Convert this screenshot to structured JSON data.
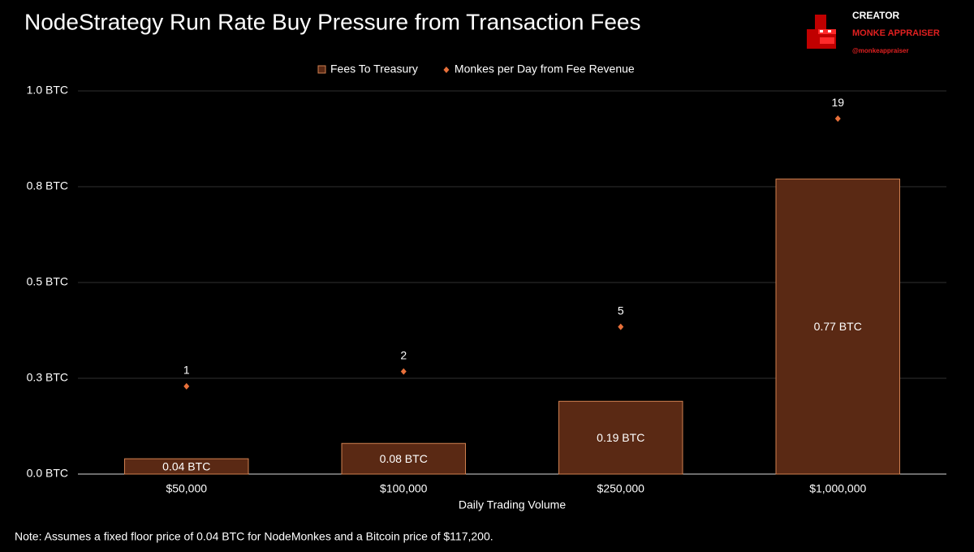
{
  "chart_data": {
    "type": "bar",
    "title": "NodeStrategy Run Rate Buy Pressure from Transaction Fees",
    "xlabel": "Daily Trading Volume",
    "note": "Note: Assumes a fixed floor price of 0.04 BTC for NodeMonkes and a Bitcoin price of $117,200.",
    "categories": [
      "$50,000",
      "$100,000",
      "$250,000",
      "$1,000,000"
    ],
    "series": [
      {
        "name": "Fees To Treasury",
        "type": "bar",
        "color": "#5a2914",
        "edgecolor": "#d08050",
        "values": [
          0.04,
          0.08,
          0.19,
          0.77
        ],
        "value_labels": [
          "0.04 BTC",
          "0.08 BTC",
          "0.19 BTC",
          "0.77 BTC"
        ]
      },
      {
        "name": "Monkes per Day from Fee Revenue",
        "type": "scatter",
        "axis": "y2",
        "color": "#e8703a",
        "values": [
          1,
          2,
          5,
          19
        ]
      }
    ],
    "ylim": [
      0,
      1.0
    ],
    "yticks": [
      {
        "value": 0,
        "label": "0.0 BTC"
      },
      {
        "value": 0.25,
        "label": "0.3 BTC"
      },
      {
        "value": 0.5,
        "label": "0.5 BTC"
      },
      {
        "value": 0.75,
        "label": "0.8 BTC"
      },
      {
        "value": 1.0,
        "label": "1.0 BTC"
      }
    ],
    "y2lim": [
      -4.9,
      20.86
    ],
    "grid": true,
    "legend": "top"
  },
  "logo": {
    "role": "CREATOR",
    "name": "MONKE APPRAISER",
    "handle": "@monkeappraiser"
  }
}
